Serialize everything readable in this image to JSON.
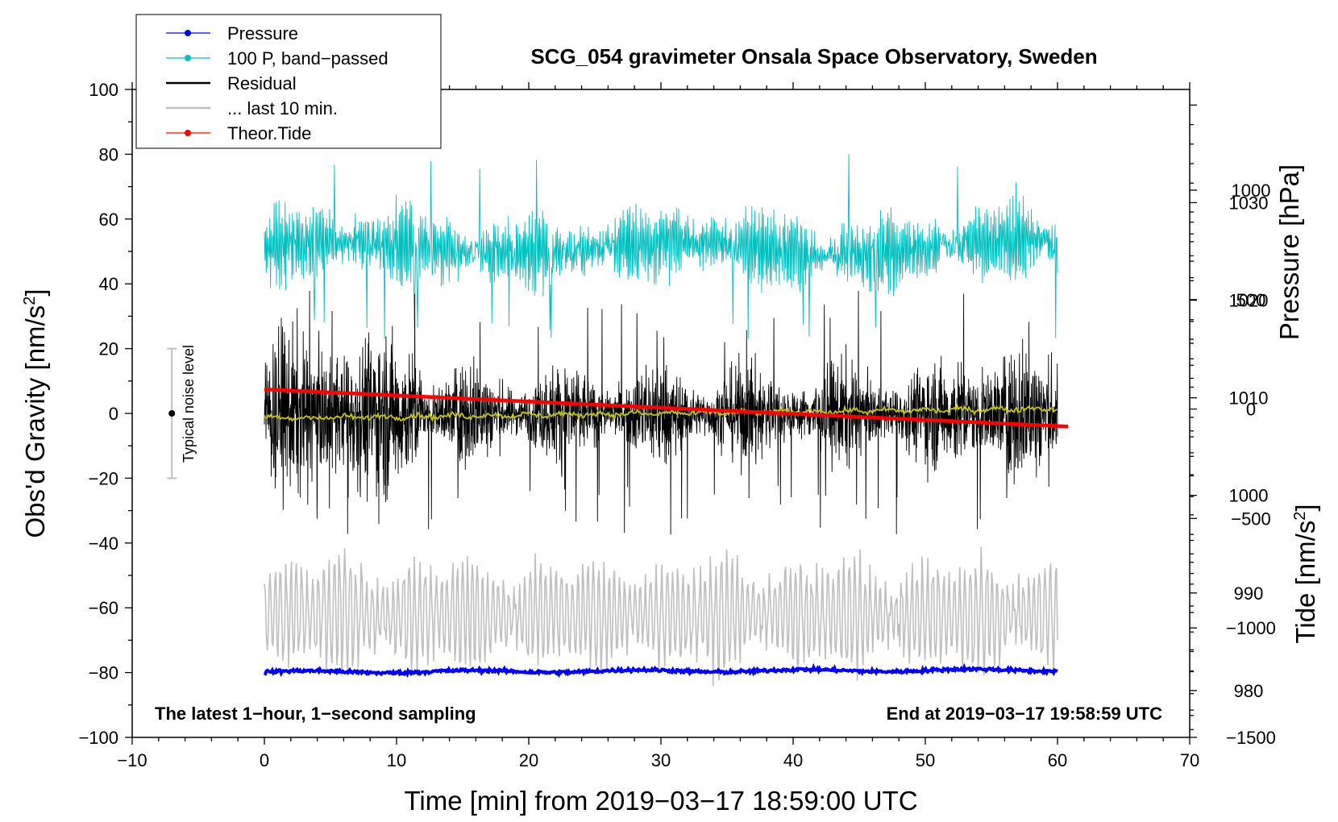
{
  "chart_data": {
    "type": "line",
    "title": "SCG_054 gravimeter Onsala Space Observatory, Sweden",
    "xlabel": "Time [min] from 2019−03−17 18:59:00 UTC",
    "ylabel_main": "Obs'd Gravity [nm/s",
    "ylabel_sup": "2",
    "ylabel_close": "]",
    "ylabel_pressure": "Pressure [hPa]",
    "ylabel_tide_main": "Tide [nm/s",
    "ylabel_tide_sup": "2",
    "ylabel_tide_close": "]",
    "xlim": [
      -10,
      70
    ],
    "ylim": [
      -100,
      100
    ],
    "pressure_lim": [
      975.2,
      1041.6
    ],
    "tide_lim": [
      -1500,
      1460
    ],
    "x_ticks": [
      "−10",
      "0",
      "10",
      "20",
      "30",
      "40",
      "50",
      "60",
      "70"
    ],
    "x_tick_values": [
      -10,
      0,
      10,
      20,
      30,
      40,
      50,
      60,
      70
    ],
    "y_ticks": [
      "100",
      "80",
      "60",
      "40",
      "20",
      "0",
      "−20",
      "−40",
      "−60",
      "−80",
      "−100"
    ],
    "y_tick_values": [
      100,
      80,
      60,
      40,
      20,
      0,
      -20,
      -40,
      -60,
      -80,
      -100
    ],
    "pressure_ticks": [
      "1030",
      "1020",
      "1010",
      "1000",
      "990",
      "980"
    ],
    "pressure_tick_values": [
      1030,
      1020,
      1010,
      1000,
      990,
      980
    ],
    "tide_ticks": [
      "1000",
      "500",
      "0",
      "−500",
      "−1000",
      "−1500"
    ],
    "tide_tick_values": [
      1000,
      500,
      0,
      -500,
      -1000,
      -1500
    ],
    "legend": {
      "position": "top-left",
      "entries": [
        {
          "label": "Pressure",
          "color": "#0000ff",
          "marker": true
        },
        {
          "label": "100 P, band−passed",
          "color": "#00c0c0",
          "marker": true
        },
        {
          "label": "Residual",
          "color": "#000000",
          "marker": false
        },
        {
          "label": "... last 10 min.",
          "color": "#bfbfbf",
          "marker": false
        },
        {
          "label": "Theor.Tide",
          "color": "#ff0000",
          "marker": true
        }
      ]
    },
    "noise_bar": {
      "label": "Typical noise level",
      "center": 0,
      "half_range": 20,
      "x": -7
    },
    "annotation_left": "The latest 1−hour, 1−second sampling",
    "annotation_right": "End at 2019−03−17 19:58:59 UTC",
    "series": [
      {
        "name": "Pressure",
        "color": "#0000ff",
        "axis": "pressure",
        "x_range": [
          0,
          60
        ],
        "level_start": 981.9,
        "level_end": 982.1,
        "noise": 0.25
      },
      {
        "name": "100 P, band−passed",
        "color": "#00c0c0",
        "axis": "gravity",
        "x_range": [
          0,
          60
        ],
        "mean": 51,
        "amplitude": 10,
        "min": 23,
        "max": 82
      },
      {
        "name": "Residual",
        "color": "#000000",
        "axis": "gravity",
        "x_range": [
          0,
          60
        ],
        "mean": 0,
        "amplitude": 13,
        "min": -47,
        "max": 38
      },
      {
        "name": "Residual (smoothed)",
        "color": "#c8c800",
        "axis": "gravity",
        "x_range": [
          0,
          60
        ],
        "start": -1.5,
        "end": 1.5,
        "noise": 0.8
      },
      {
        "name": "... last 10 min.",
        "color": "#bfbfbf",
        "axis": "gravity",
        "x_range": [
          0,
          60
        ],
        "mean": -62,
        "amplitude": 12,
        "min": -93,
        "max": -31
      },
      {
        "name": "Theor.Tide",
        "color": "#ff0000",
        "axis": "tide",
        "x_range": [
          0,
          60.8
        ],
        "start": 90,
        "end": -80
      }
    ]
  }
}
